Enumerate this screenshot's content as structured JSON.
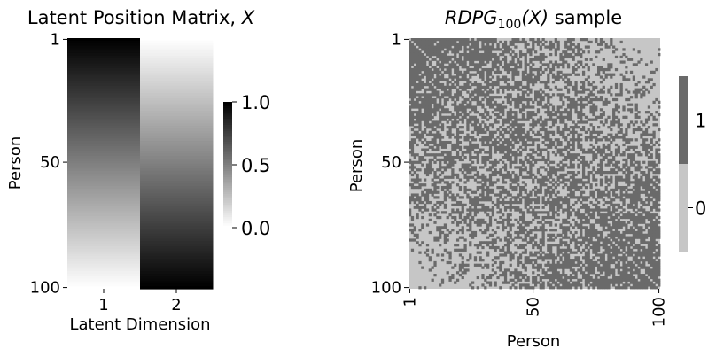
{
  "chart_data": [
    {
      "type": "heatmap",
      "title": "Latent Position Matrix, X",
      "title_text": "Latent Position Matrix, ",
      "title_var": "X",
      "xlabel": "Latent Dimension",
      "ylabel": "Person",
      "n_rows": 100,
      "columns": [
        "1",
        "2"
      ],
      "row_tick_labels": [
        "1",
        "50",
        "100"
      ],
      "column_1_range": [
        1.0,
        0.0
      ],
      "column_2_range": [
        0.0,
        1.0
      ],
      "colormap": "Greys",
      "colorbar": {
        "range": [
          0.0,
          1.0
        ],
        "ticks": [
          "0.0",
          "0.5",
          "1.0"
        ]
      }
    },
    {
      "type": "heatmap",
      "title": "RDPG100(X) sample",
      "title_main": "RDPG",
      "title_sub": "100",
      "title_rest": "(X)",
      "title_suffix": " sample",
      "xlabel": "Person",
      "ylabel": "Person",
      "n_nodes": 100,
      "x_tick_labels": [
        "1",
        "50",
        "100"
      ],
      "y_tick_labels": [
        "1",
        "50",
        "100"
      ],
      "values": "binary adjacency matrix (0 = light gray, 1 = dark gray); edge density highest near top-left, lowest near bottom-right",
      "colorbar": {
        "ticks": [
          "0",
          "1"
        ],
        "colors": {
          "0": "#c6c6c6",
          "1": "#6a6a6a"
        }
      }
    }
  ]
}
